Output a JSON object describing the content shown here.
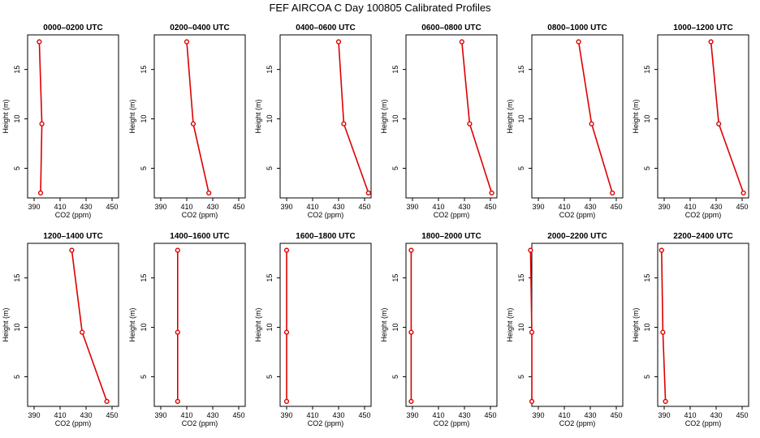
{
  "title": "FEF AIRCOA C  Day 100805  Calibrated Profiles",
  "chart_data": [
    {
      "type": "line",
      "title": "0000–0200 UTC",
      "xlabel": "CO2 (ppm)",
      "ylabel": "Height (m)",
      "xlim": [
        385,
        455
      ],
      "ylim": [
        2,
        18.5
      ],
      "xticks": [
        390,
        410,
        430,
        450
      ],
      "yticks": [
        5,
        10,
        15
      ],
      "color": "#dd0000",
      "x": [
        395,
        396,
        394
      ],
      "y": [
        2.5,
        9.5,
        17.8
      ]
    },
    {
      "type": "line",
      "title": "0200–0400 UTC",
      "xlabel": "CO2 (ppm)",
      "ylabel": "Height (m)",
      "xlim": [
        385,
        455
      ],
      "ylim": [
        2,
        18.5
      ],
      "xticks": [
        390,
        410,
        430,
        450
      ],
      "yticks": [
        5,
        10,
        15
      ],
      "color": "#dd0000",
      "x": [
        427,
        415,
        410
      ],
      "y": [
        2.5,
        9.5,
        17.8
      ]
    },
    {
      "type": "line",
      "title": "0400–0600 UTC",
      "xlabel": "CO2 (ppm)",
      "ylabel": "Height (m)",
      "xlim": [
        385,
        455
      ],
      "ylim": [
        2,
        18.5
      ],
      "xticks": [
        390,
        410,
        430,
        450
      ],
      "yticks": [
        5,
        10,
        15
      ],
      "color": "#dd0000",
      "x": [
        453,
        434,
        430
      ],
      "y": [
        2.5,
        9.5,
        17.8
      ]
    },
    {
      "type": "line",
      "title": "0600–0800 UTC",
      "xlabel": "CO2 (ppm)",
      "ylabel": "Height (m)",
      "xlim": [
        385,
        455
      ],
      "ylim": [
        2,
        18.5
      ],
      "xticks": [
        390,
        410,
        430,
        450
      ],
      "yticks": [
        5,
        10,
        15
      ],
      "color": "#dd0000",
      "x": [
        451,
        434,
        428
      ],
      "y": [
        2.5,
        9.5,
        17.8
      ]
    },
    {
      "type": "line",
      "title": "0800–1000 UTC",
      "xlabel": "CO2 (ppm)",
      "ylabel": "Height (m)",
      "xlim": [
        385,
        455
      ],
      "ylim": [
        2,
        18.5
      ],
      "xticks": [
        390,
        410,
        430,
        450
      ],
      "yticks": [
        5,
        10,
        15
      ],
      "color": "#dd0000",
      "x": [
        447,
        431,
        421
      ],
      "y": [
        2.5,
        9.5,
        17.8
      ]
    },
    {
      "type": "line",
      "title": "1000–1200 UTC",
      "xlabel": "CO2 (ppm)",
      "ylabel": "Height (m)",
      "xlim": [
        385,
        455
      ],
      "ylim": [
        2,
        18.5
      ],
      "xticks": [
        390,
        410,
        430,
        450
      ],
      "yticks": [
        5,
        10,
        15
      ],
      "color": "#dd0000",
      "x": [
        451,
        432,
        426
      ],
      "y": [
        2.5,
        9.5,
        17.8
      ]
    },
    {
      "type": "line",
      "title": "1200–1400 UTC",
      "xlabel": "CO2 (ppm)",
      "ylabel": "Height (m)",
      "xlim": [
        385,
        455
      ],
      "ylim": [
        2,
        18.5
      ],
      "xticks": [
        390,
        410,
        430,
        450
      ],
      "yticks": [
        5,
        10,
        15
      ],
      "color": "#dd0000",
      "x": [
        446,
        427,
        419
      ],
      "y": [
        2.5,
        9.5,
        17.8
      ]
    },
    {
      "type": "line",
      "title": "1400–1600 UTC",
      "xlabel": "CO2 (ppm)",
      "ylabel": "Height (m)",
      "xlim": [
        385,
        455
      ],
      "ylim": [
        2,
        18.5
      ],
      "xticks": [
        390,
        410,
        430,
        450
      ],
      "yticks": [
        5,
        10,
        15
      ],
      "color": "#dd0000",
      "x": [
        403,
        403,
        403
      ],
      "y": [
        2.5,
        9.5,
        17.8
      ]
    },
    {
      "type": "line",
      "title": "1600–1800 UTC",
      "xlabel": "CO2 (ppm)",
      "ylabel": "Height (m)",
      "xlim": [
        385,
        455
      ],
      "ylim": [
        2,
        18.5
      ],
      "xticks": [
        390,
        410,
        430,
        450
      ],
      "yticks": [
        5,
        10,
        15
      ],
      "color": "#dd0000",
      "x": [
        390,
        390,
        390
      ],
      "y": [
        2.5,
        9.5,
        17.8
      ]
    },
    {
      "type": "line",
      "title": "1800–2000 UTC",
      "xlabel": "CO2 (ppm)",
      "ylabel": "Height (m)",
      "xlim": [
        385,
        455
      ],
      "ylim": [
        2,
        18.5
      ],
      "xticks": [
        390,
        410,
        430,
        450
      ],
      "yticks": [
        5,
        10,
        15
      ],
      "color": "#dd0000",
      "x": [
        389,
        389,
        389
      ],
      "y": [
        2.5,
        9.5,
        17.8
      ]
    },
    {
      "type": "line",
      "title": "2000–2200 UTC",
      "xlabel": "CO2 (ppm)",
      "ylabel": "Height (m)",
      "xlim": [
        385,
        455
      ],
      "ylim": [
        2,
        18.5
      ],
      "xticks": [
        390,
        410,
        430,
        450
      ],
      "yticks": [
        5,
        10,
        15
      ],
      "color": "#dd0000",
      "x": [
        385,
        385,
        384
      ],
      "y": [
        2.5,
        9.5,
        17.8
      ]
    },
    {
      "type": "line",
      "title": "2200–2400 UTC",
      "xlabel": "CO2 (ppm)",
      "ylabel": "Height (m)",
      "xlim": [
        385,
        455
      ],
      "ylim": [
        2,
        18.5
      ],
      "xticks": [
        390,
        410,
        430,
        450
      ],
      "yticks": [
        5,
        10,
        15
      ],
      "color": "#dd0000",
      "x": [
        391,
        389,
        388
      ],
      "y": [
        2.5,
        9.5,
        17.8
      ]
    }
  ]
}
